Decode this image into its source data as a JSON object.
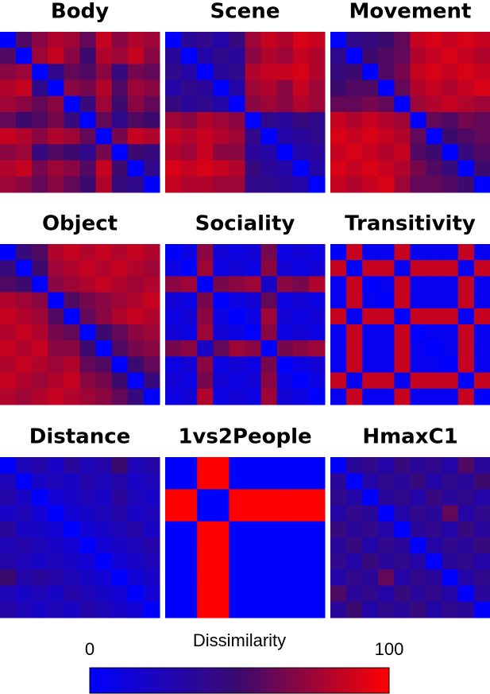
{
  "chart_data": [
    {
      "type": "heatmap",
      "title": "Body",
      "values": [
        [
          0,
          55,
          70,
          80,
          75,
          60,
          85,
          70,
          80,
          75
        ],
        [
          55,
          0,
          75,
          85,
          70,
          50,
          80,
          75,
          85,
          70
        ],
        [
          70,
          75,
          0,
          40,
          60,
          55,
          70,
          45,
          65,
          60
        ],
        [
          80,
          85,
          40,
          0,
          70,
          65,
          80,
          55,
          75,
          70
        ],
        [
          75,
          70,
          60,
          70,
          0,
          45,
          75,
          50,
          70,
          60
        ],
        [
          60,
          50,
          55,
          65,
          45,
          0,
          60,
          40,
          55,
          50
        ],
        [
          85,
          80,
          70,
          80,
          75,
          60,
          0,
          65,
          85,
          80
        ],
        [
          70,
          75,
          45,
          55,
          50,
          40,
          65,
          0,
          50,
          45
        ],
        [
          80,
          85,
          65,
          75,
          70,
          55,
          85,
          50,
          0,
          40
        ],
        [
          75,
          70,
          60,
          70,
          60,
          50,
          80,
          45,
          40,
          0
        ]
      ]
    },
    {
      "type": "heatmap",
      "title": "Scene",
      "values": [
        [
          0,
          35,
          40,
          30,
          45,
          75,
          85,
          80,
          90,
          85
        ],
        [
          35,
          0,
          30,
          40,
          35,
          70,
          80,
          75,
          85,
          80
        ],
        [
          40,
          30,
          0,
          35,
          40,
          80,
          85,
          85,
          90,
          80
        ],
        [
          30,
          40,
          35,
          0,
          30,
          75,
          80,
          70,
          85,
          75
        ],
        [
          45,
          35,
          40,
          30,
          0,
          70,
          75,
          70,
          80,
          75
        ],
        [
          75,
          70,
          80,
          75,
          70,
          0,
          40,
          35,
          45,
          40
        ],
        [
          85,
          80,
          85,
          80,
          75,
          40,
          0,
          30,
          35,
          40
        ],
        [
          80,
          75,
          85,
          70,
          70,
          35,
          30,
          0,
          30,
          35
        ],
        [
          90,
          85,
          90,
          85,
          80,
          45,
          35,
          30,
          0,
          30
        ],
        [
          85,
          80,
          80,
          75,
          75,
          40,
          40,
          35,
          30,
          0
        ]
      ]
    },
    {
      "type": "heatmap",
      "title": "Movement",
      "values": [
        [
          0,
          40,
          45,
          50,
          60,
          85,
          90,
          85,
          90,
          85
        ],
        [
          40,
          0,
          50,
          55,
          60,
          80,
          85,
          90,
          85,
          80
        ],
        [
          45,
          50,
          0,
          55,
          65,
          85,
          90,
          85,
          90,
          85
        ],
        [
          50,
          55,
          55,
          0,
          60,
          80,
          85,
          80,
          85,
          90
        ],
        [
          60,
          60,
          65,
          60,
          0,
          75,
          80,
          85,
          80,
          75
        ],
        [
          85,
          80,
          85,
          80,
          75,
          0,
          60,
          55,
          65,
          60
        ],
        [
          90,
          85,
          90,
          85,
          80,
          60,
          0,
          50,
          55,
          60
        ],
        [
          85,
          90,
          85,
          80,
          85,
          55,
          50,
          0,
          45,
          55
        ],
        [
          90,
          85,
          90,
          85,
          80,
          65,
          55,
          45,
          0,
          50
        ],
        [
          85,
          80,
          85,
          90,
          75,
          60,
          60,
          55,
          50,
          0
        ]
      ]
    },
    {
      "type": "heatmap",
      "title": "Object",
      "values": [
        [
          0,
          45,
          55,
          80,
          85,
          80,
          85,
          80,
          85,
          80
        ],
        [
          45,
          0,
          50,
          75,
          80,
          85,
          80,
          85,
          80,
          75
        ],
        [
          55,
          50,
          0,
          70,
          75,
          80,
          85,
          80,
          75,
          80
        ],
        [
          80,
          75,
          70,
          0,
          55,
          65,
          70,
          75,
          80,
          85
        ],
        [
          85,
          80,
          75,
          55,
          0,
          60,
          70,
          80,
          85,
          80
        ],
        [
          80,
          85,
          80,
          65,
          60,
          0,
          50,
          60,
          70,
          75
        ],
        [
          85,
          80,
          85,
          70,
          70,
          50,
          0,
          55,
          65,
          70
        ],
        [
          80,
          85,
          80,
          75,
          80,
          60,
          55,
          0,
          50,
          60
        ],
        [
          85,
          80,
          75,
          80,
          85,
          70,
          65,
          50,
          0,
          45
        ],
        [
          80,
          75,
          80,
          85,
          80,
          75,
          70,
          60,
          45,
          0
        ]
      ]
    },
    {
      "type": "heatmap",
      "title": "Sociality",
      "values": [
        [
          0,
          10,
          70,
          15,
          10,
          15,
          65,
          10,
          15,
          10
        ],
        [
          10,
          0,
          75,
          10,
          15,
          10,
          70,
          15,
          10,
          15
        ],
        [
          70,
          75,
          0,
          65,
          70,
          75,
          20,
          70,
          65,
          80
        ],
        [
          15,
          10,
          65,
          0,
          10,
          15,
          60,
          10,
          15,
          10
        ],
        [
          10,
          15,
          70,
          10,
          0,
          10,
          75,
          15,
          10,
          15
        ],
        [
          15,
          10,
          75,
          15,
          10,
          0,
          70,
          10,
          15,
          10
        ],
        [
          65,
          70,
          20,
          60,
          75,
          70,
          0,
          65,
          70,
          75
        ],
        [
          10,
          15,
          70,
          10,
          15,
          10,
          65,
          0,
          10,
          15
        ],
        [
          15,
          10,
          65,
          15,
          10,
          15,
          70,
          10,
          0,
          10
        ],
        [
          10,
          15,
          80,
          10,
          15,
          10,
          75,
          15,
          10,
          0
        ]
      ]
    },
    {
      "type": "heatmap",
      "title": "Transitivity",
      "values": [
        [
          0,
          85,
          5,
          5,
          85,
          5,
          5,
          5,
          85,
          5
        ],
        [
          85,
          0,
          85,
          85,
          5,
          85,
          85,
          85,
          5,
          85
        ],
        [
          5,
          85,
          0,
          5,
          85,
          5,
          5,
          5,
          85,
          5
        ],
        [
          5,
          85,
          5,
          0,
          85,
          5,
          5,
          5,
          85,
          5
        ],
        [
          85,
          5,
          85,
          85,
          0,
          85,
          85,
          85,
          5,
          85
        ],
        [
          5,
          85,
          5,
          5,
          85,
          0,
          5,
          5,
          85,
          5
        ],
        [
          5,
          85,
          5,
          5,
          85,
          5,
          0,
          5,
          85,
          5
        ],
        [
          5,
          85,
          5,
          5,
          85,
          5,
          5,
          0,
          85,
          5
        ],
        [
          85,
          5,
          85,
          85,
          5,
          85,
          85,
          85,
          0,
          85
        ],
        [
          5,
          85,
          5,
          5,
          85,
          5,
          5,
          5,
          85,
          0
        ]
      ]
    },
    {
      "type": "heatmap",
      "title": "Distance",
      "values": [
        [
          0,
          25,
          30,
          20,
          35,
          25,
          30,
          50,
          25,
          30
        ],
        [
          25,
          0,
          20,
          25,
          20,
          30,
          25,
          30,
          20,
          25
        ],
        [
          30,
          20,
          0,
          15,
          20,
          25,
          20,
          35,
          25,
          20
        ],
        [
          20,
          25,
          15,
          0,
          15,
          20,
          25,
          30,
          20,
          25
        ],
        [
          35,
          20,
          20,
          15,
          0,
          15,
          20,
          25,
          30,
          20
        ],
        [
          25,
          30,
          25,
          20,
          15,
          0,
          15,
          20,
          25,
          30
        ],
        [
          30,
          25,
          20,
          25,
          20,
          15,
          0,
          15,
          20,
          25
        ],
        [
          50,
          30,
          35,
          30,
          25,
          20,
          15,
          0,
          15,
          20
        ],
        [
          25,
          20,
          25,
          20,
          30,
          25,
          20,
          15,
          0,
          15
        ],
        [
          30,
          25,
          20,
          25,
          20,
          30,
          25,
          20,
          15,
          0
        ]
      ]
    },
    {
      "type": "heatmap",
      "title": "1vs2People",
      "values": [
        [
          0,
          0,
          100,
          100,
          0,
          0,
          0,
          0,
          0,
          0
        ],
        [
          0,
          0,
          100,
          100,
          0,
          0,
          0,
          0,
          0,
          0
        ],
        [
          100,
          100,
          0,
          0,
          100,
          100,
          100,
          100,
          100,
          100
        ],
        [
          100,
          100,
          0,
          0,
          100,
          100,
          100,
          100,
          100,
          100
        ],
        [
          0,
          0,
          100,
          100,
          0,
          0,
          0,
          0,
          0,
          0
        ],
        [
          0,
          0,
          100,
          100,
          0,
          0,
          0,
          0,
          0,
          0
        ],
        [
          0,
          0,
          100,
          100,
          0,
          0,
          0,
          0,
          0,
          0
        ],
        [
          0,
          0,
          100,
          100,
          0,
          0,
          0,
          0,
          0,
          0
        ],
        [
          0,
          0,
          100,
          100,
          0,
          0,
          0,
          0,
          0,
          0
        ],
        [
          0,
          0,
          100,
          100,
          0,
          0,
          0,
          0,
          0,
          0
        ]
      ]
    },
    {
      "type": "heatmap",
      "title": "HmaxC1",
      "values": [
        [
          0,
          35,
          40,
          30,
          45,
          35,
          40,
          30,
          55,
          35
        ],
        [
          35,
          0,
          30,
          40,
          35,
          45,
          30,
          40,
          35,
          50
        ],
        [
          40,
          30,
          0,
          35,
          40,
          30,
          45,
          35,
          40,
          30
        ],
        [
          30,
          40,
          35,
          0,
          30,
          40,
          35,
          60,
          30,
          40
        ],
        [
          45,
          35,
          40,
          30,
          0,
          35,
          40,
          30,
          45,
          35
        ],
        [
          35,
          45,
          30,
          40,
          35,
          0,
          30,
          40,
          35,
          45
        ],
        [
          40,
          30,
          45,
          35,
          40,
          30,
          0,
          35,
          40,
          30
        ],
        [
          30,
          40,
          35,
          60,
          30,
          40,
          35,
          0,
          30,
          40
        ],
        [
          55,
          35,
          40,
          30,
          45,
          35,
          40,
          30,
          0,
          35
        ],
        [
          35,
          50,
          30,
          40,
          35,
          45,
          30,
          40,
          35,
          0
        ]
      ]
    },
    {
      "type": "colorbar",
      "title": "Dissimilarity",
      "zlim": [
        0,
        100
      ],
      "ticks": [
        0,
        100
      ],
      "colors": [
        "#0000ff",
        "#3c0a6e",
        "#ff0000"
      ]
    }
  ]
}
